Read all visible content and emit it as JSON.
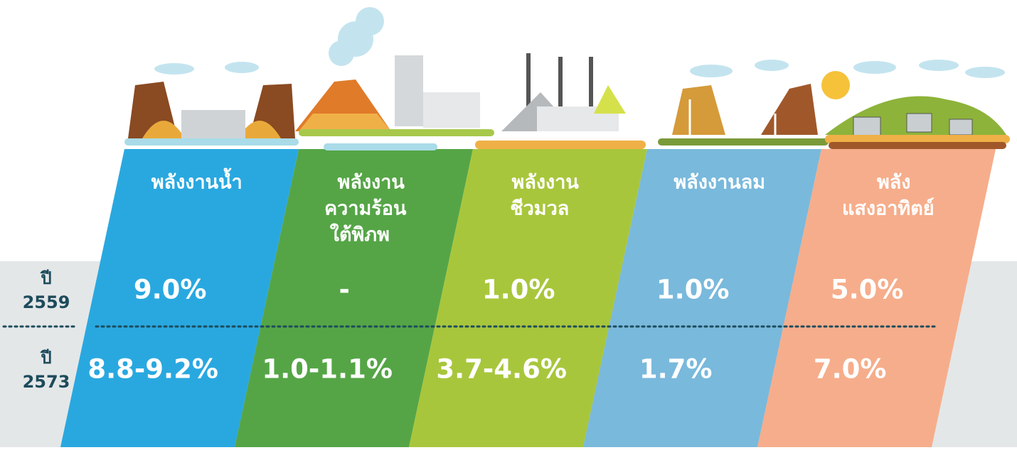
{
  "row_labels": [
    [
      "ปี",
      "2559"
    ],
    [
      "ปี",
      "2573"
    ]
  ],
  "columns": [
    {
      "header": [
        "พลังงานน้ำ"
      ],
      "values": [
        "9.0%",
        "8.8-9.2%"
      ]
    },
    {
      "header": [
        "พลังงาน",
        "ความร้อน",
        "ใต้พิภพ"
      ],
      "values": [
        "-",
        "1.0-1.1%"
      ]
    },
    {
      "header": [
        "พลังงาน",
        "ชีวมวล"
      ],
      "values": [
        "1.0%",
        "3.7-4.6%"
      ]
    },
    {
      "header": [
        "พลังงานลม"
      ],
      "values": [
        "1.0%",
        "1.7%"
      ]
    },
    {
      "header": [
        "พลัง",
        "แสงอาทิตย์"
      ],
      "values": [
        "5.0%",
        "7.0%"
      ]
    }
  ]
}
